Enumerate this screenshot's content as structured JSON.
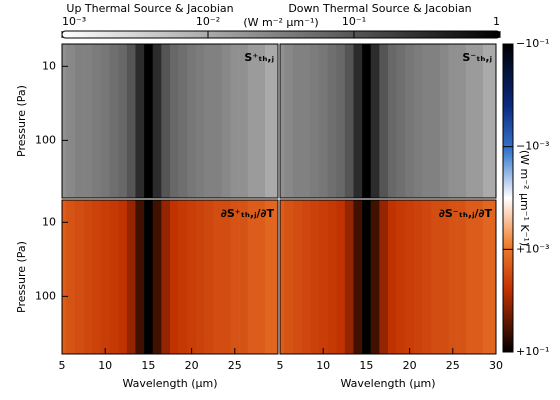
{
  "column_titles": [
    "Up Thermal Source & Jacobian",
    "Down Thermal Source & Jacobian"
  ],
  "colorbars": {
    "top": {
      "units": "(W m⁻² μm⁻¹)",
      "lim": [
        0.001,
        1
      ],
      "ticks": [
        {
          "value": 0.001,
          "label": "10⁻³"
        },
        {
          "value": 0.01,
          "label": "10⁻²"
        },
        {
          "value": 0.1,
          "label": "10⁻¹"
        },
        1
      ]
    },
    "right": {
      "units": "(W m⁻² μm⁻¹ K⁻¹)",
      "lim": [
        -0.1,
        0.1
      ],
      "ticks": [
        {
          "value": -0.1,
          "label": "−10⁻¹"
        },
        {
          "value": -0.001,
          "label": "−10⁻³"
        },
        {
          "value": 0.001,
          "label": "+10⁻³"
        },
        {
          "value": 0.1,
          "label": "+10⁻¹"
        }
      ]
    }
  },
  "chart_data": [
    {
      "type": "heatmap",
      "label": "S⁺ₜₕ,ⱼ",
      "ylabel": "Pressure (Pa)",
      "ylim": [
        600,
        5
      ],
      "yticks": [
        10,
        100
      ],
      "log_y": true,
      "xlim": [
        5,
        30
      ],
      "colormap": "grey",
      "x": [
        5,
        6,
        7,
        8,
        9,
        10,
        11,
        12,
        13,
        14,
        15,
        16,
        17,
        18,
        19,
        20,
        21,
        22,
        23,
        24,
        25,
        26,
        27,
        28,
        29,
        30
      ],
      "values": [
        0.02,
        0.025,
        0.03,
        0.03,
        0.035,
        0.04,
        0.05,
        0.06,
        0.1,
        0.3,
        1,
        0.3,
        0.1,
        0.06,
        0.05,
        0.04,
        0.035,
        0.03,
        0.03,
        0.025,
        0.02,
        0.02,
        0.015,
        0.015,
        0.01,
        0.01
      ]
    },
    {
      "type": "heatmap",
      "label": "S⁻ₜₕ,ⱼ",
      "ylim": [
        600,
        5
      ],
      "log_y": true,
      "xlim": [
        5,
        30
      ],
      "colormap": "grey",
      "x": [
        5,
        6,
        7,
        8,
        9,
        10,
        11,
        12,
        13,
        14,
        15,
        16,
        17,
        18,
        19,
        20,
        21,
        22,
        23,
        24,
        25,
        26,
        27,
        28,
        29,
        30
      ],
      "values": [
        0.02,
        0.025,
        0.03,
        0.03,
        0.035,
        0.04,
        0.05,
        0.06,
        0.1,
        0.3,
        1,
        0.3,
        0.1,
        0.06,
        0.05,
        0.04,
        0.035,
        0.03,
        0.03,
        0.025,
        0.02,
        0.02,
        0.015,
        0.015,
        0.01,
        0.01
      ]
    },
    {
      "type": "heatmap",
      "label": "∂S⁺ₜₕ,ⱼ/∂T",
      "ylabel": "Pressure (Pa)",
      "xlabel": "Wavelength (μm)",
      "ylim": [
        600,
        5
      ],
      "yticks": [
        10,
        100
      ],
      "log_y": true,
      "xlim": [
        5,
        30
      ],
      "xticks": [
        5,
        10,
        15,
        20,
        25
      ],
      "colormap": "orange",
      "x": [
        5,
        6,
        7,
        8,
        9,
        10,
        11,
        12,
        13,
        14,
        15,
        16,
        17,
        18,
        19,
        20,
        21,
        22,
        23,
        24,
        25,
        26,
        27,
        28,
        29,
        30
      ],
      "values": [
        0.004,
        0.005,
        0.006,
        0.007,
        0.008,
        0.009,
        0.01,
        0.012,
        0.02,
        0.05,
        0.1,
        0.05,
        0.02,
        0.012,
        0.01,
        0.009,
        0.008,
        0.007,
        0.006,
        0.006,
        0.005,
        0.005,
        0.004,
        0.004,
        0.003,
        0.003
      ]
    },
    {
      "type": "heatmap",
      "label": "∂S⁻ₜₕ,ⱼ/∂T",
      "xlabel": "Wavelength (μm)",
      "ylim": [
        600,
        5
      ],
      "log_y": true,
      "xlim": [
        5,
        30
      ],
      "xticks": [
        5,
        10,
        15,
        20,
        25,
        30
      ],
      "colormap": "orange",
      "x": [
        5,
        6,
        7,
        8,
        9,
        10,
        11,
        12,
        13,
        14,
        15,
        16,
        17,
        18,
        19,
        20,
        21,
        22,
        23,
        24,
        25,
        26,
        27,
        28,
        29,
        30
      ],
      "values": [
        0.004,
        0.005,
        0.006,
        0.007,
        0.008,
        0.009,
        0.01,
        0.012,
        0.02,
        0.05,
        0.1,
        0.05,
        0.02,
        0.012,
        0.01,
        0.009,
        0.008,
        0.007,
        0.006,
        0.006,
        0.005,
        0.005,
        0.004,
        0.004,
        0.003,
        0.003
      ]
    }
  ]
}
